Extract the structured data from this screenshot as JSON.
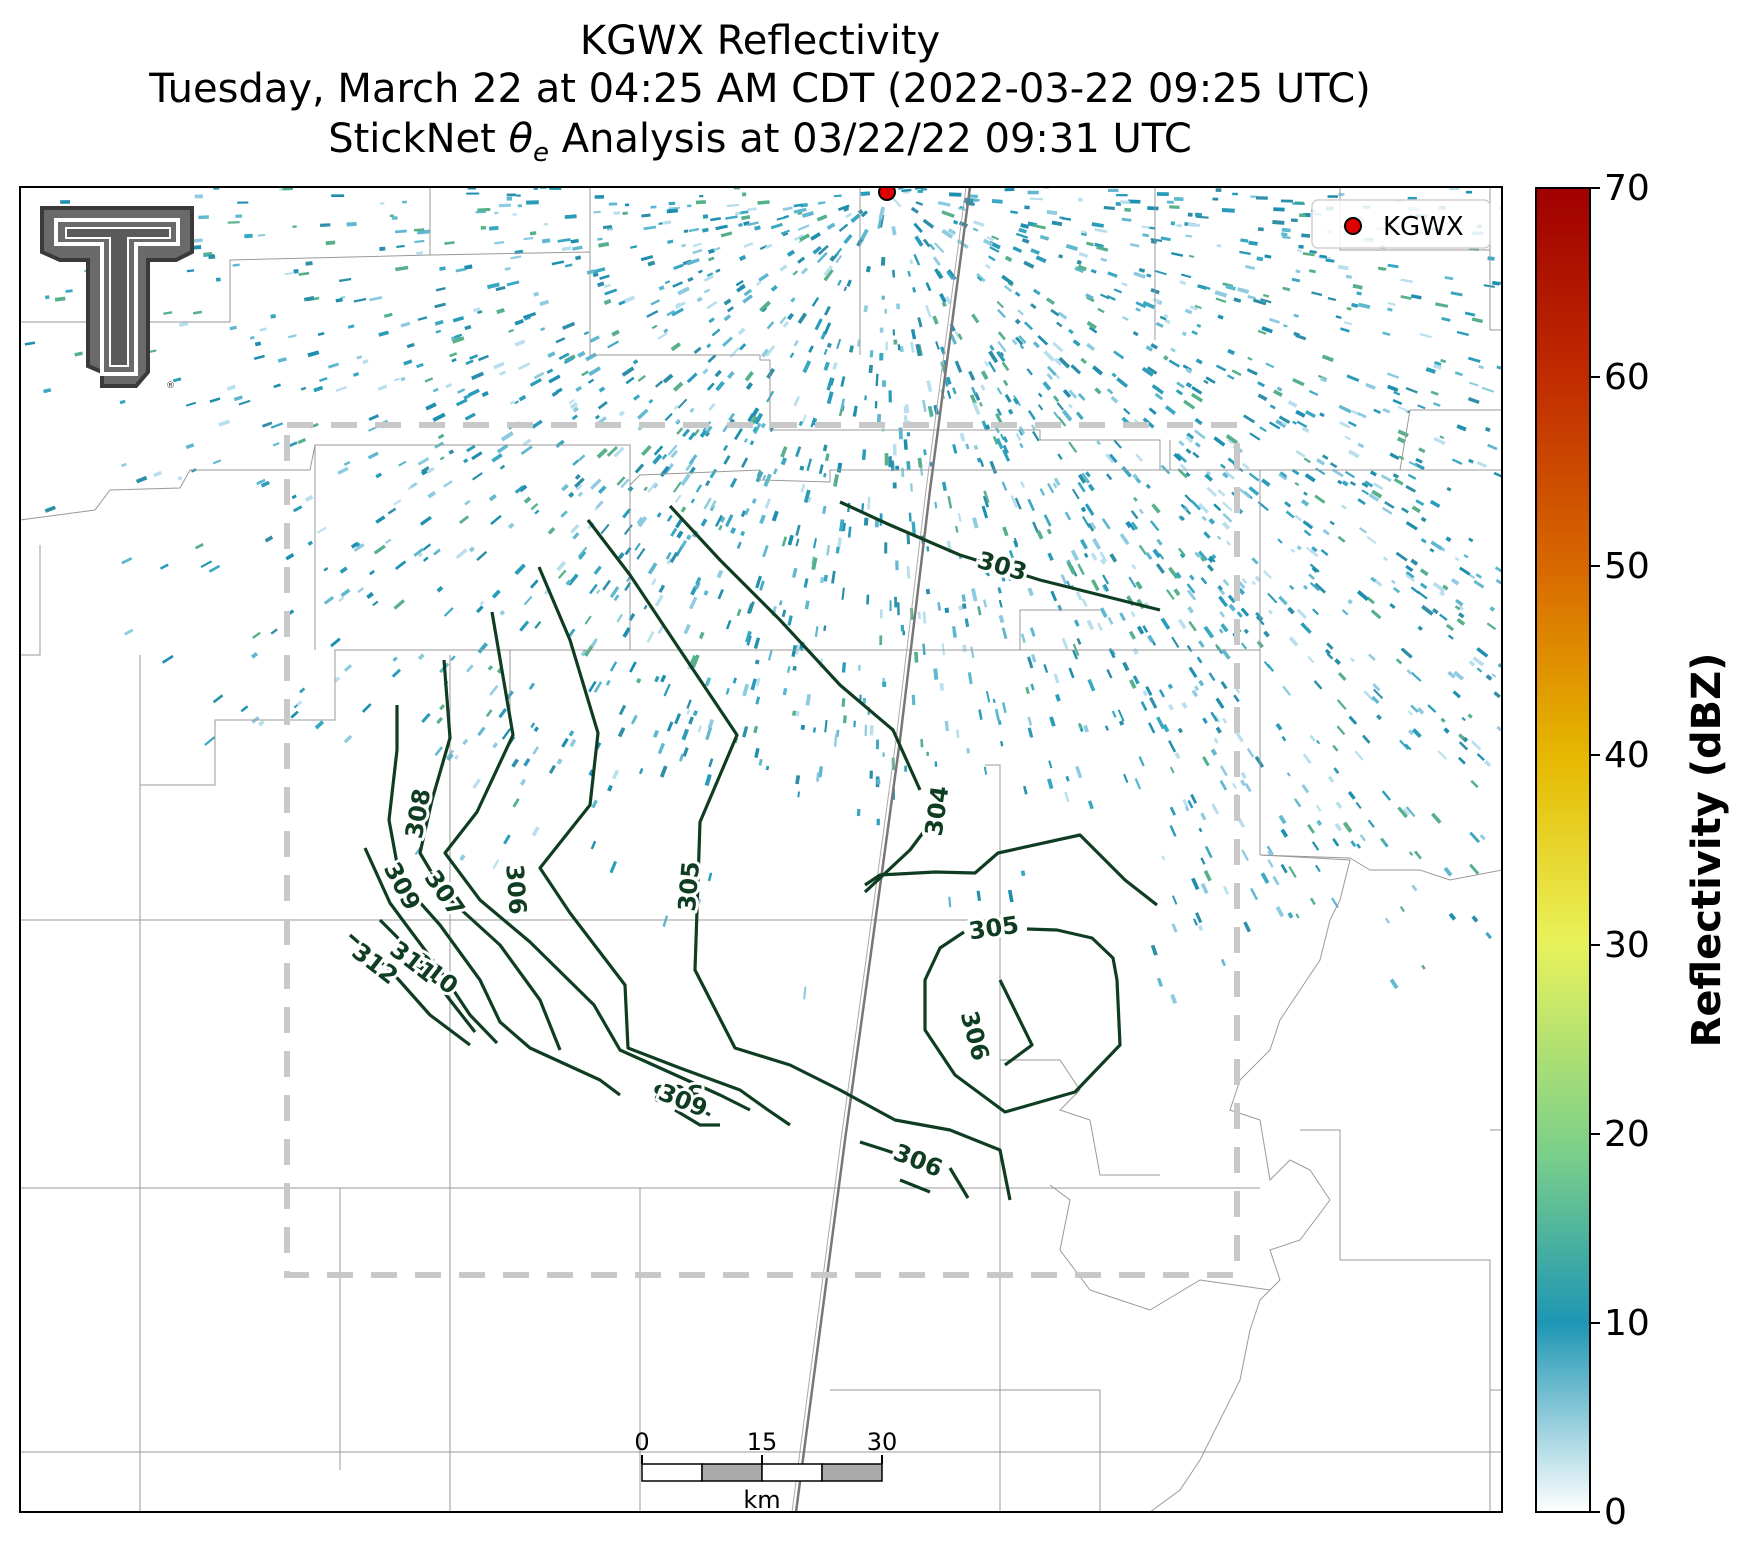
{
  "title": {
    "line1": "KGWX Reflectivity",
    "line2": "Tuesday, March 22 at 04:25 AM CDT (2022-03-22 09:25 UTC)",
    "line3_pre": "StickNet ",
    "line3_symbol": "θ",
    "line3_sub": "e",
    "line3_post": " Analysis at 03/22/22 09:31 UTC"
  },
  "legend": {
    "entry": "KGWX",
    "marker_color": "#e00000"
  },
  "colorbar": {
    "label": "Reflectivity (dBZ)",
    "ticks": [
      "0",
      "10",
      "20",
      "30",
      "40",
      "50",
      "60",
      "70"
    ],
    "colors": [
      "#ffffff",
      "#1e96b4",
      "#7acf8a",
      "#e8f25a",
      "#e6b800",
      "#d86a00",
      "#c02a00",
      "#a00000"
    ]
  },
  "contours": {
    "color": "#0f3d22",
    "labels": [
      "303",
      "304",
      "305",
      "305",
      "306",
      "306",
      "306",
      "307",
      "308",
      "308",
      "309",
      "309",
      "310",
      "311",
      "312"
    ]
  },
  "scalebar": {
    "ticks": [
      "0",
      "15",
      "30"
    ],
    "unit": "km"
  },
  "logo": {
    "letter": "T"
  }
}
